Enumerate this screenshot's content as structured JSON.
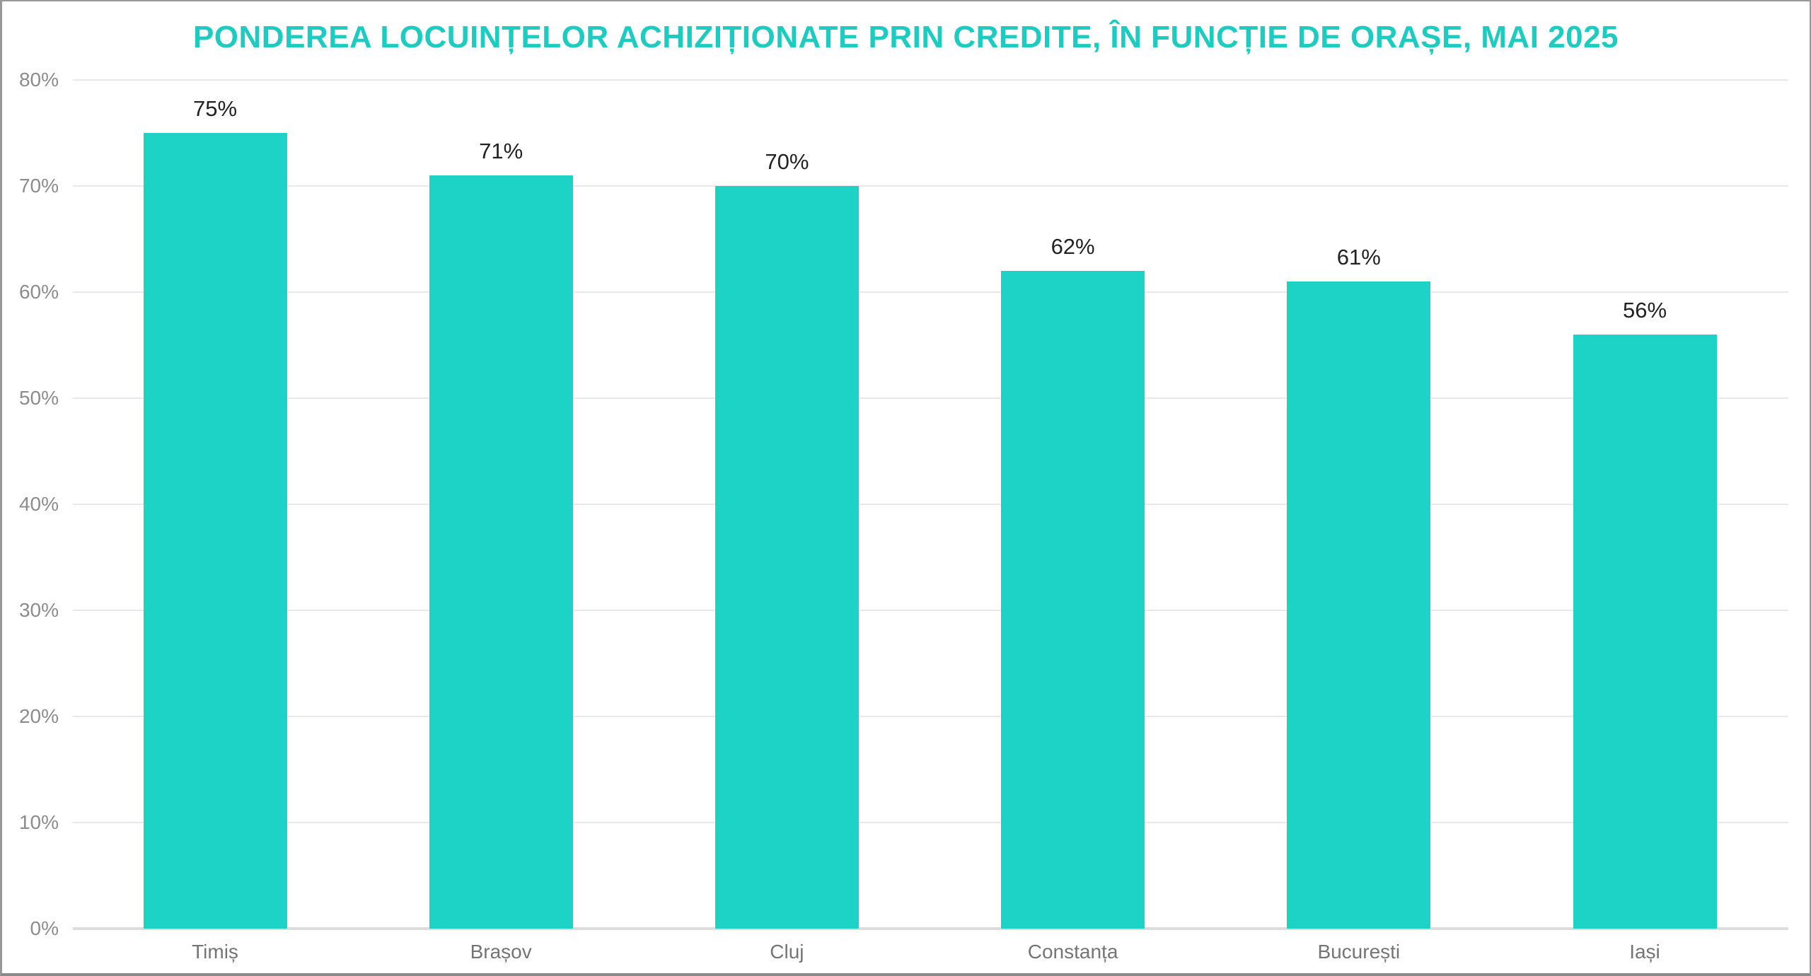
{
  "chart_data": {
    "type": "bar",
    "title": "PONDEREA LOCUINȚELOR ACHIZIȚIONATE PRIN CREDITE, ÎN FUNCȚIE DE ORAȘE, MAI 2025",
    "categories": [
      "Timiș",
      "Brașov",
      "Cluj",
      "Constanța",
      "București",
      "Iași"
    ],
    "values": [
      75,
      71,
      70,
      62,
      61,
      56
    ],
    "value_labels": [
      "75%",
      "71%",
      "70%",
      "62%",
      "61%",
      "56%"
    ],
    "xlabel": "",
    "ylabel": "",
    "ylim": [
      0,
      80
    ],
    "ytick_labels": [
      "80%",
      "70%",
      "60%",
      "50%",
      "40%",
      "30%",
      "20%",
      "10%",
      "0%"
    ],
    "grid": "horizontal",
    "legend_position": "none",
    "colors": {
      "bar": "#1dd3c5",
      "title": "#1ecbc1",
      "ytick_label": "#8c8c8c",
      "category_label": "#757575",
      "value_label": "#222222",
      "gridline": "#e9e9e9",
      "baseline": "#dcdcdc"
    }
  }
}
